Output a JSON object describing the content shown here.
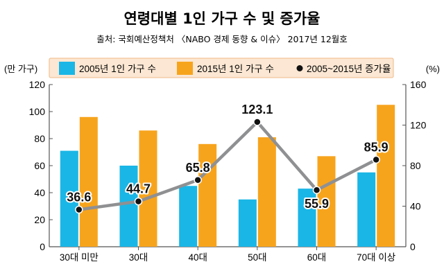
{
  "title": "연령대별 1인 가구 수 및 증가율",
  "source": "출처: 국회예산정책처 〈NABO 경제 동향 & 이슈〉 2017년 12월호",
  "colors": {
    "bar2005": "#1ab6e6",
    "bar2015": "#f7a41d",
    "line": "#8f9092",
    "point": "#111111",
    "legend_bg": "#fbe7d3",
    "legend_border": "#f0b984"
  },
  "chart_data": {
    "type": "bar",
    "title": "연령대별 1인 가구 수 및 증가율",
    "categories": [
      "30대 미만",
      "30대",
      "40대",
      "50대",
      "60대",
      "70대 이상"
    ],
    "left_axis_label": "(만 가구)",
    "right_axis_label": "(%)",
    "ylim_left": [
      0,
      120
    ],
    "ylim_right": [
      0,
      160
    ],
    "yticks_left": [
      "0",
      "20",
      "40",
      "60",
      "80",
      "100",
      "120"
    ],
    "yticks_right": [
      "0",
      "40",
      "80",
      "120",
      "160"
    ],
    "grid": false,
    "legend_position": "top",
    "series": [
      {
        "name": "2005년 1인 가구 수",
        "type": "bar",
        "axis": "left",
        "values": [
          71,
          60,
          45,
          35,
          43,
          55
        ]
      },
      {
        "name": "2015년 1인 가구 수",
        "type": "bar",
        "axis": "left",
        "values": [
          96,
          86,
          76,
          81,
          67,
          105
        ]
      },
      {
        "name": "2005~2015년 증가율",
        "type": "line",
        "axis": "right",
        "values": [
          36.6,
          44.7,
          65.8,
          123.1,
          55.9,
          85.9
        ],
        "labels": [
          "36.6",
          "44.7",
          "65.8",
          "123.1",
          "55.9",
          "85.9"
        ]
      }
    ]
  }
}
